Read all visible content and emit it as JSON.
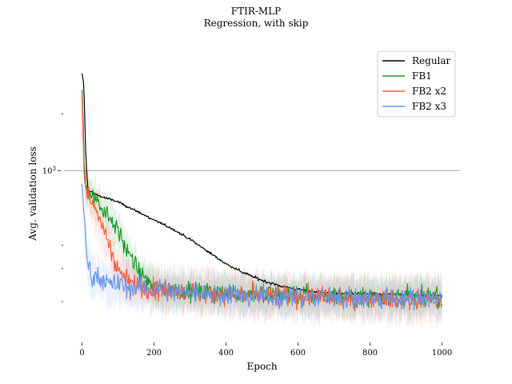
{
  "chart_data": {
    "type": "line",
    "title": "FTIR-MLP",
    "subtitle": "Regression, with skip",
    "xlabel": "Epoch",
    "ylabel": "Avg. validation loss",
    "yscale": "log",
    "xlim": [
      -50,
      1050
    ],
    "ylim": [
      125,
      4500
    ],
    "x_ticks": [
      0,
      200,
      400,
      600,
      800,
      1000
    ],
    "x_tick_labels": [
      "0",
      "200",
      "400",
      "600",
      "800",
      "1000"
    ],
    "y_major_tick_label": "10^3",
    "y_major_tick_value": 1000,
    "y_minor_ticks": [
      200,
      300,
      400,
      2000
    ],
    "reference_line_y": 1000,
    "legend_position": "top-right",
    "series": [
      {
        "name": "Regular",
        "color": "#000000",
        "x": [
          0,
          5,
          10,
          15,
          20,
          50,
          100,
          150,
          200,
          250,
          300,
          350,
          400,
          450,
          500,
          550,
          600,
          650,
          700,
          800,
          900,
          1000
        ],
        "y": [
          3300,
          2900,
          1300,
          840,
          780,
          730,
          680,
          610,
          545,
          490,
          430,
          370,
          318,
          285,
          260,
          243,
          232,
          226,
          222,
          220,
          218,
          215
        ],
        "noise": 0.01
      },
      {
        "name": "FB1",
        "color": "#1a9a28",
        "x": [
          0,
          3,
          6,
          10,
          20,
          50,
          80,
          100,
          130,
          160,
          200,
          250,
          300,
          400,
          500,
          600,
          700,
          800,
          900,
          1000
        ],
        "y": [
          2700,
          1900,
          1100,
          840,
          770,
          660,
          560,
          480,
          360,
          280,
          240,
          230,
          226,
          222,
          220,
          218,
          216,
          215,
          214,
          213
        ],
        "noise": 0.07
      },
      {
        "name": "FB2 x2",
        "color": "#ff5a3c",
        "x": [
          0,
          3,
          6,
          10,
          20,
          40,
          60,
          80,
          100,
          120,
          150,
          200,
          300,
          400,
          500,
          600,
          700,
          800,
          900,
          1000
        ],
        "y": [
          2500,
          1500,
          950,
          820,
          720,
          600,
          490,
          380,
          300,
          265,
          245,
          232,
          225,
          220,
          216,
          212,
          210,
          208,
          206,
          205
        ],
        "noise": 0.08
      },
      {
        "name": "FB2 x3",
        "color": "#6495ed",
        "x": [
          0,
          3,
          6,
          10,
          15,
          20,
          30,
          50,
          80,
          100,
          150,
          200,
          300,
          400,
          500,
          600,
          700,
          800,
          900,
          1000
        ],
        "y": [
          850,
          700,
          560,
          430,
          340,
          300,
          280,
          265,
          250,
          245,
          238,
          233,
          225,
          220,
          215,
          212,
          210,
          208,
          207,
          206
        ],
        "noise": 0.08
      }
    ]
  }
}
